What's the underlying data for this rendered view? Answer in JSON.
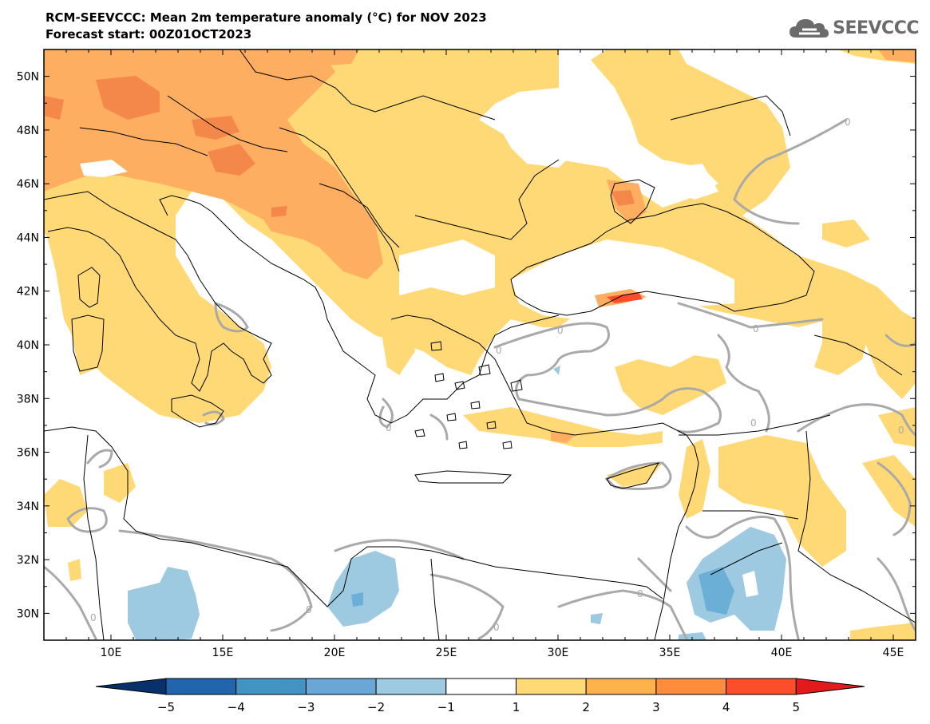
{
  "header": {
    "title": "RCM-SEEVCCC: Mean 2m temperature anomaly (°C) for NOV 2023",
    "subtitle": "Forecast start: 00Z01OCT2023"
  },
  "logo": {
    "text": "SEEVCCC",
    "icon": "cloud-icon"
  },
  "map": {
    "lon_range": [
      7,
      46
    ],
    "lat_range": [
      29,
      51
    ],
    "lon_ticks": [
      10,
      15,
      20,
      25,
      30,
      35,
      40,
      45
    ],
    "lon_tick_labels": [
      "10E",
      "15E",
      "20E",
      "25E",
      "30E",
      "35E",
      "40E",
      "45E"
    ],
    "lat_ticks": [
      30,
      32,
      34,
      36,
      38,
      40,
      42,
      44,
      46,
      48,
      50
    ],
    "lat_tick_labels": [
      "30N",
      "32N",
      "34N",
      "36N",
      "38N",
      "40N",
      "42N",
      "44N",
      "46N",
      "48N",
      "50N"
    ],
    "contour_label": "0"
  },
  "colorbar": {
    "levels": [
      "−5",
      "−4",
      "−3",
      "−2",
      "−1",
      "1",
      "2",
      "3",
      "4",
      "5"
    ],
    "colors": [
      "#08306b",
      "#2166ac",
      "#4393c3",
      "#6ba7d6",
      "#9ecae1",
      "#ffffff",
      "#fed976",
      "#feb24c",
      "#fd8d3c",
      "#fc4e2a",
      "#e31a1c"
    ]
  },
  "colors": {
    "anom_1_2": "#fed976",
    "anom_2_3": "#fdae61",
    "anom_3_4": "#f4874a",
    "anom_m1_m2": "#9ecae1",
    "anom_m2_m3": "#6baed6",
    "contour_zero": "#a9a9a9",
    "coastline": "#000000"
  }
}
